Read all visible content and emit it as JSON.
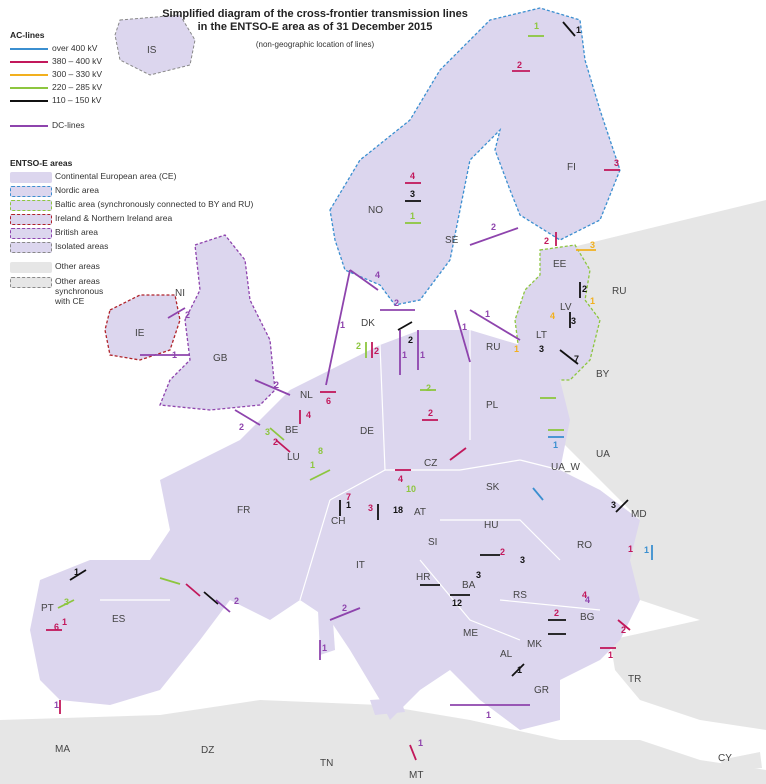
{
  "title_line1": "Simplified diagram of the cross-frontier transmission lines",
  "title_line2": "in the ENTSO-E area as of 31 December 2015",
  "subtitle": "(non-geographic location of lines)",
  "legend": {
    "ac_heading": "AC-lines",
    "ac_lines": [
      {
        "label": "over 400 kV",
        "color": "#3b8fd0"
      },
      {
        "label": "380 – 400 kV",
        "color": "#c2185b"
      },
      {
        "label": "300 – 330 kV",
        "color": "#f2b01e"
      },
      {
        "label": "220 – 285 kV",
        "color": "#8dc63f"
      },
      {
        "label": "110 – 150 kV",
        "color": "#111111"
      }
    ],
    "dc_label": "DC-lines",
    "dc_color": "#8e44ad",
    "areas_heading": "ENTSO-E areas",
    "areas": [
      {
        "label": "Continental European area (CE)",
        "fill": "#dcd6ee",
        "border": "none"
      },
      {
        "label": "Nordic area",
        "fill": "#dcd6ee",
        "border": "#3b8fd0"
      },
      {
        "label": "Baltic area (synchronously connected to BY and RU)",
        "fill": "#dcd6ee",
        "border": "#8dc63f"
      },
      {
        "label": "Ireland & Northern Ireland area",
        "fill": "#dcd6ee",
        "border": "#b0232a"
      },
      {
        "label": "British area",
        "fill": "#dcd6ee",
        "border": "#8e44ad"
      },
      {
        "label": "Isolated areas",
        "fill": "#dcd6ee",
        "border": "#888888"
      },
      {
        "label": "Other areas",
        "fill": "#e6e6e6",
        "border": "none"
      },
      {
        "label": "Other areas synchronous with CE",
        "fill": "#e6e6e6",
        "border": "#888888"
      }
    ]
  },
  "countries": [
    "IS",
    "NO",
    "SE",
    "FI",
    "EE",
    "LV",
    "LT",
    "RU",
    "BY",
    "DK",
    "IE",
    "NI",
    "GB",
    "NL",
    "BE",
    "LU",
    "DE",
    "PL",
    "UA",
    "UA_W",
    "CZ",
    "SK",
    "AT",
    "HU",
    "RO",
    "MD",
    "FR",
    "CH",
    "SI",
    "HR",
    "BA",
    "RS",
    "BG",
    "ME",
    "MK",
    "AL",
    "GR",
    "IT",
    "ES",
    "PT",
    "TR",
    "CY",
    "MA",
    "DZ",
    "TN",
    "MT"
  ],
  "line_counts": [
    {
      "value": "1",
      "color": "#111111"
    },
    {
      "value": "1",
      "color": "#8dc63f"
    },
    {
      "value": "2",
      "color": "#c2185b"
    },
    {
      "value": "3",
      "color": "#c2185b"
    },
    {
      "value": "4",
      "color": "#c2185b"
    },
    {
      "value": "3",
      "color": "#111111"
    },
    {
      "value": "1",
      "color": "#8dc63f"
    },
    {
      "value": "2",
      "color": "#8e44ad"
    },
    {
      "value": "2",
      "color": "#c2185b"
    },
    {
      "value": "3",
      "color": "#f2b01e"
    },
    {
      "value": "2",
      "color": "#111111"
    },
    {
      "value": "1",
      "color": "#f2b01e"
    },
    {
      "value": "4",
      "color": "#f2b01e"
    },
    {
      "value": "3",
      "color": "#111111"
    },
    {
      "value": "1",
      "color": "#f2b01e"
    },
    {
      "value": "3",
      "color": "#111111"
    },
    {
      "value": "7",
      "color": "#111111"
    },
    {
      "value": "1",
      "color": "#8e44ad"
    },
    {
      "value": "1",
      "color": "#8e44ad"
    },
    {
      "value": "2",
      "color": "#111111"
    },
    {
      "value": "2",
      "color": "#8dc63f"
    },
    {
      "value": "2",
      "color": "#c2185b"
    },
    {
      "value": "1",
      "color": "#8e44ad"
    },
    {
      "value": "1",
      "color": "#8e44ad"
    },
    {
      "value": "4",
      "color": "#8e44ad"
    },
    {
      "value": "2",
      "color": "#8e44ad"
    },
    {
      "value": "1",
      "color": "#8e44ad"
    },
    {
      "value": "2",
      "color": "#8e44ad"
    },
    {
      "value": "1",
      "color": "#8e44ad"
    },
    {
      "value": "2",
      "color": "#8e44ad"
    },
    {
      "value": "6",
      "color": "#c2185b"
    },
    {
      "value": "4",
      "color": "#c2185b"
    },
    {
      "value": "3",
      "color": "#8dc63f"
    },
    {
      "value": "2",
      "color": "#c2185b"
    },
    {
      "value": "2",
      "color": "#8e44ad"
    },
    {
      "value": "1",
      "color": "#8dc63f"
    },
    {
      "value": "8",
      "color": "#8dc63f"
    },
    {
      "value": "2",
      "color": "#8dc63f"
    },
    {
      "value": "2",
      "color": "#c2185b"
    },
    {
      "value": "1",
      "color": "#3b8fd0"
    },
    {
      "value": "4",
      "color": "#c2185b"
    },
    {
      "value": "1",
      "color": "#111111"
    },
    {
      "value": "18",
      "color": "#111111"
    },
    {
      "value": "7",
      "color": "#c2185b"
    },
    {
      "value": "10",
      "color": "#8dc63f"
    },
    {
      "value": "3",
      "color": "#c2185b"
    },
    {
      "value": "2",
      "color": "#c2185b"
    },
    {
      "value": "3",
      "color": "#111111"
    },
    {
      "value": "3",
      "color": "#111111"
    },
    {
      "value": "12",
      "color": "#111111"
    },
    {
      "value": "2",
      "color": "#8e44ad"
    },
    {
      "value": "2",
      "color": "#8e44ad"
    },
    {
      "value": "1",
      "color": "#8e44ad"
    },
    {
      "value": "2",
      "color": "#c2185b"
    },
    {
      "value": "4",
      "color": "#c2185b"
    },
    {
      "value": "1",
      "color": "#8e44ad"
    },
    {
      "value": "2",
      "color": "#c2185b"
    },
    {
      "value": "1",
      "color": "#111111"
    },
    {
      "value": "1",
      "color": "#c2185b"
    },
    {
      "value": "4",
      "color": "#8e44ad"
    },
    {
      "value": "1",
      "color": "#c2185b"
    },
    {
      "value": "1",
      "color": "#8e44ad"
    },
    {
      "value": "1",
      "color": "#8e44ad"
    },
    {
      "value": "1",
      "color": "#3b8fd0"
    },
    {
      "value": "3",
      "color": "#111111"
    },
    {
      "value": "1",
      "color": "#c2185b"
    },
    {
      "value": "6",
      "color": "#c2185b"
    },
    {
      "value": "3",
      "color": "#8dc63f"
    },
    {
      "value": "1",
      "color": "#111111"
    }
  ]
}
